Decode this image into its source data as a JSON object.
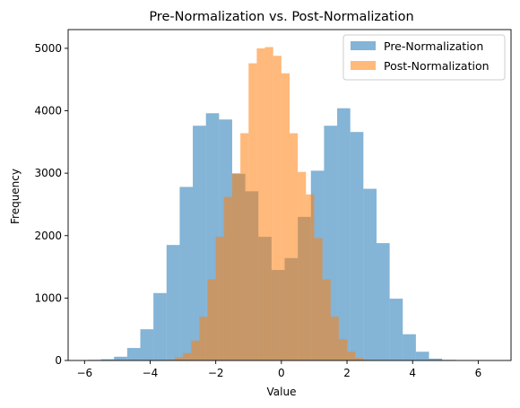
{
  "chart_data": {
    "type": "bar",
    "title": "Pre-Normalization vs. Post-Normalization",
    "xlabel": "Value",
    "ylabel": "Frequency",
    "xlim": [
      -6.5,
      7.0
    ],
    "ylim": [
      0,
      5300
    ],
    "xticks": [
      -6,
      -4,
      -2,
      0,
      2,
      4,
      6
    ],
    "yticks": [
      0,
      1000,
      2000,
      3000,
      4000,
      5000
    ],
    "legend_position": "top-right",
    "series": [
      {
        "name": "Pre-Normalization",
        "color": "#1f77b4",
        "opacity": 0.55,
        "bin_start": -5.9,
        "bin_width": 0.4,
        "values": [
          10,
          20,
          60,
          200,
          500,
          1080,
          1850,
          2780,
          3760,
          3960,
          3860,
          2990,
          2710,
          1980,
          1450,
          1640,
          2300,
          3040,
          3760,
          4040,
          3660,
          2750,
          1880,
          990,
          420,
          140,
          30,
          10
        ]
      },
      {
        "name": "Post-Normalization",
        "color": "#ff7f0e",
        "opacity": 0.55,
        "bin_start": -3.5,
        "bin_width": 0.25,
        "values": [
          10,
          50,
          120,
          320,
          700,
          1300,
          1980,
          2620,
          3000,
          3640,
          4760,
          5000,
          5020,
          4880,
          4600,
          3640,
          3020,
          2660,
          1960,
          1300,
          700,
          340,
          140,
          40,
          10
        ]
      }
    ]
  }
}
